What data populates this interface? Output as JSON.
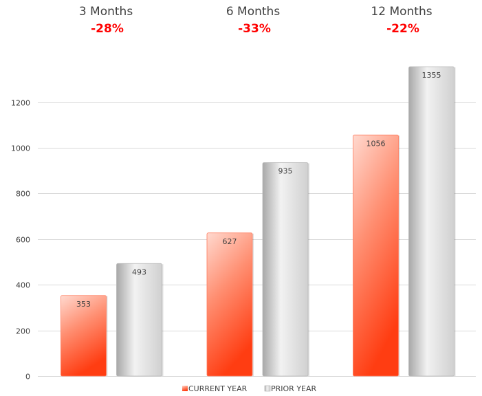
{
  "colors": {
    "current_light": "#ffd9cf",
    "current_mid": "#ff8f72",
    "current_dark": "#ff3d12",
    "prior_light": "#f2f2f2",
    "prior_mid": "#d0d0d0",
    "prior_dark": "#a8a8a8",
    "change_text": "#ff0000",
    "grid": "#d9d9d9"
  },
  "chart_data": {
    "type": "bar",
    "categories": [
      "3 Months",
      "6 Months",
      "12 Months"
    ],
    "series": [
      {
        "name": "CURRENT YEAR",
        "values": [
          353,
          627,
          1056
        ]
      },
      {
        "name": "PRIOR YEAR",
        "values": [
          493,
          935,
          1355
        ]
      }
    ],
    "period_changes": [
      "-28%",
      "-33%",
      "-22%"
    ],
    "yticks": [
      0,
      200,
      400,
      600,
      800,
      1000,
      1200
    ],
    "ylim": [
      0,
      1400
    ],
    "grid": true,
    "legend_position": "bottom"
  }
}
